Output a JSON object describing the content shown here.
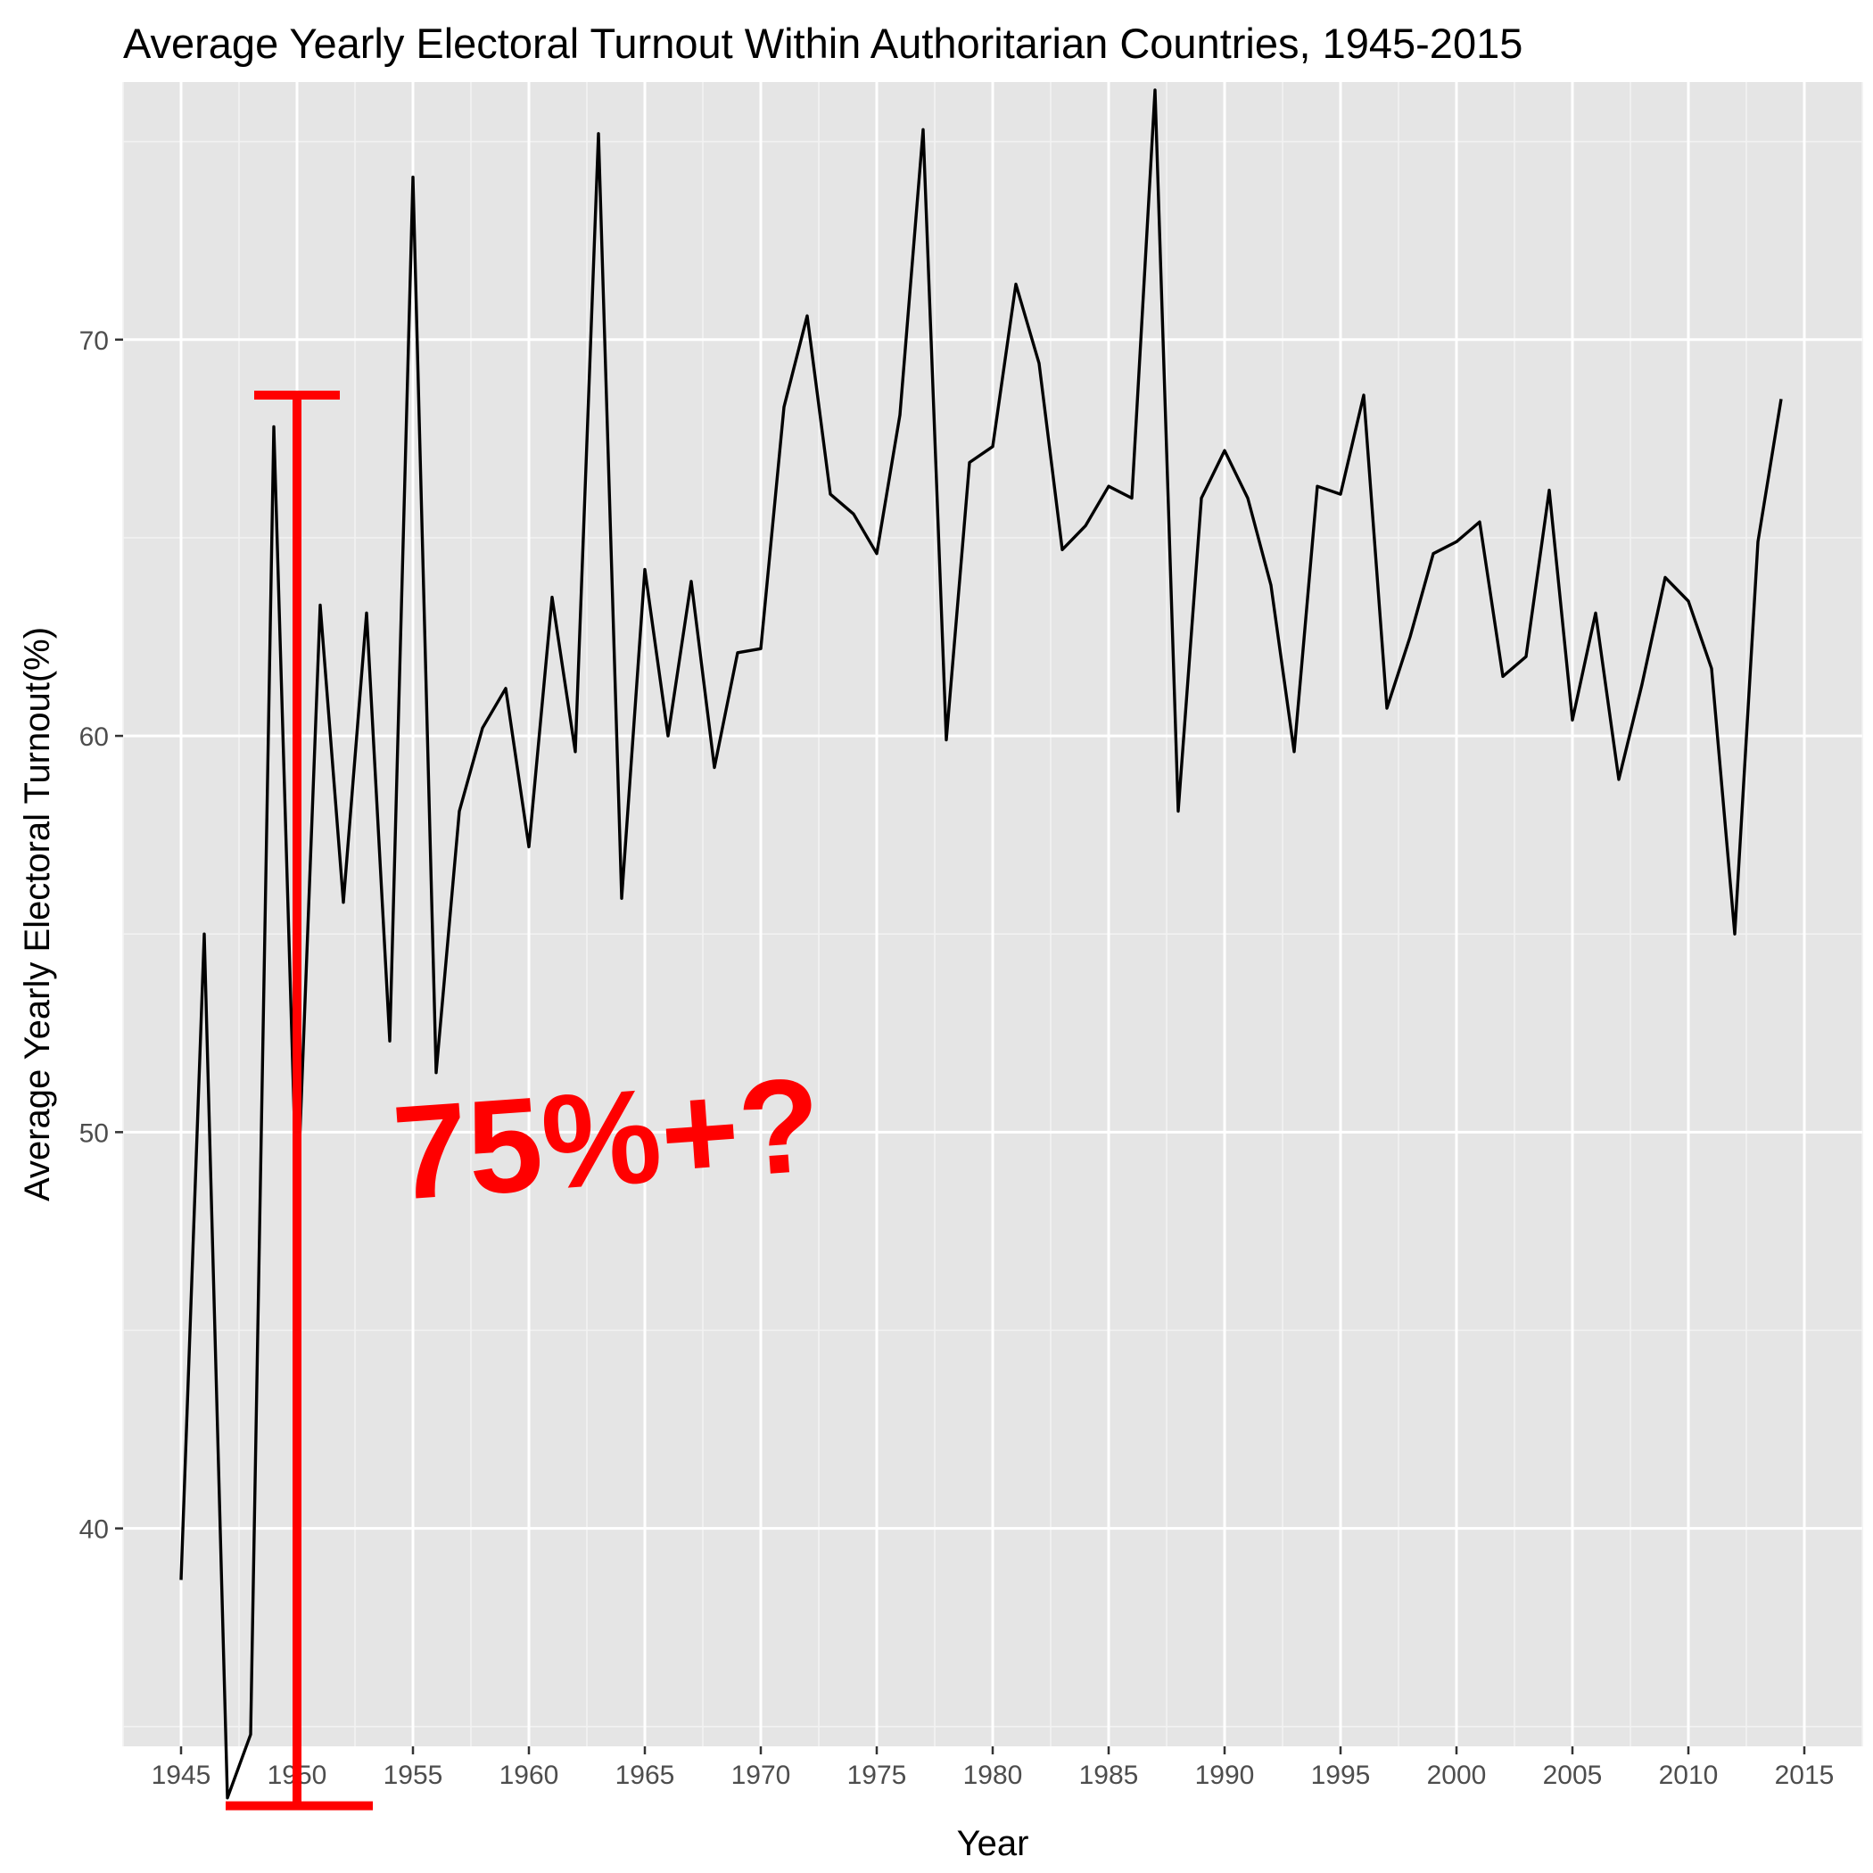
{
  "chart_data": {
    "type": "line",
    "title": "Average Yearly Electoral Turnout Within Authoritarian Countries, 1945-2015",
    "xlabel": "Year",
    "ylabel": "Average Yearly Electoral Turnout(%)",
    "xlim": [
      1942.5,
      2017.5
    ],
    "ylim": [
      34.5,
      76.5
    ],
    "x_ticks": [
      1945,
      1950,
      1955,
      1960,
      1965,
      1970,
      1975,
      1980,
      1985,
      1990,
      1995,
      2000,
      2005,
      2010,
      2015
    ],
    "y_ticks": [
      40,
      50,
      60,
      70
    ],
    "grid": true,
    "series": [
      {
        "color": "#000000",
        "x": [
          1945,
          1946,
          1947,
          1948,
          1949,
          1950,
          1951,
          1952,
          1953,
          1954,
          1955,
          1956,
          1957,
          1958,
          1959,
          1960,
          1961,
          1962,
          1963,
          1964,
          1965,
          1966,
          1967,
          1968,
          1969,
          1970,
          1971,
          1972,
          1973,
          1974,
          1975,
          1976,
          1977,
          1978,
          1979,
          1980,
          1981,
          1982,
          1983,
          1984,
          1985,
          1986,
          1987,
          1988,
          1989,
          1990,
          1991,
          1992,
          1993,
          1994,
          1995,
          1996,
          1997,
          1998,
          1999,
          2000,
          2001,
          2002,
          2003,
          2004,
          2005,
          2006,
          2007,
          2008,
          2009,
          2010,
          2011,
          2012,
          2013,
          2014
        ],
        "values": [
          38.7,
          55.0,
          33.2,
          34.8,
          67.8,
          48.0,
          63.3,
          55.8,
          63.1,
          52.3,
          74.1,
          51.5,
          58.1,
          60.2,
          61.2,
          57.2,
          63.5,
          59.6,
          75.2,
          55.9,
          64.2,
          60.0,
          63.9,
          59.2,
          62.1,
          62.2,
          68.3,
          70.6,
          66.1,
          65.6,
          64.6,
          68.1,
          75.3,
          59.9,
          66.9,
          67.3,
          71.4,
          69.4,
          64.7,
          65.3,
          66.3,
          66.0,
          76.3,
          58.1,
          66.0,
          67.2,
          66.0,
          63.8,
          59.6,
          66.3,
          66.1,
          68.6,
          60.7,
          62.5,
          64.6,
          64.9,
          65.4,
          61.5,
          62.0,
          66.2,
          60.4,
          63.1,
          58.9,
          61.3,
          64.0,
          63.4,
          61.7,
          55.0,
          64.9,
          68.5
        ]
      }
    ],
    "annotations": {
      "text": "75%+?",
      "color": "#ff0000",
      "bracket": {
        "x": 1950,
        "y_top": 68.6,
        "y_bottom": 33.0
      }
    }
  }
}
